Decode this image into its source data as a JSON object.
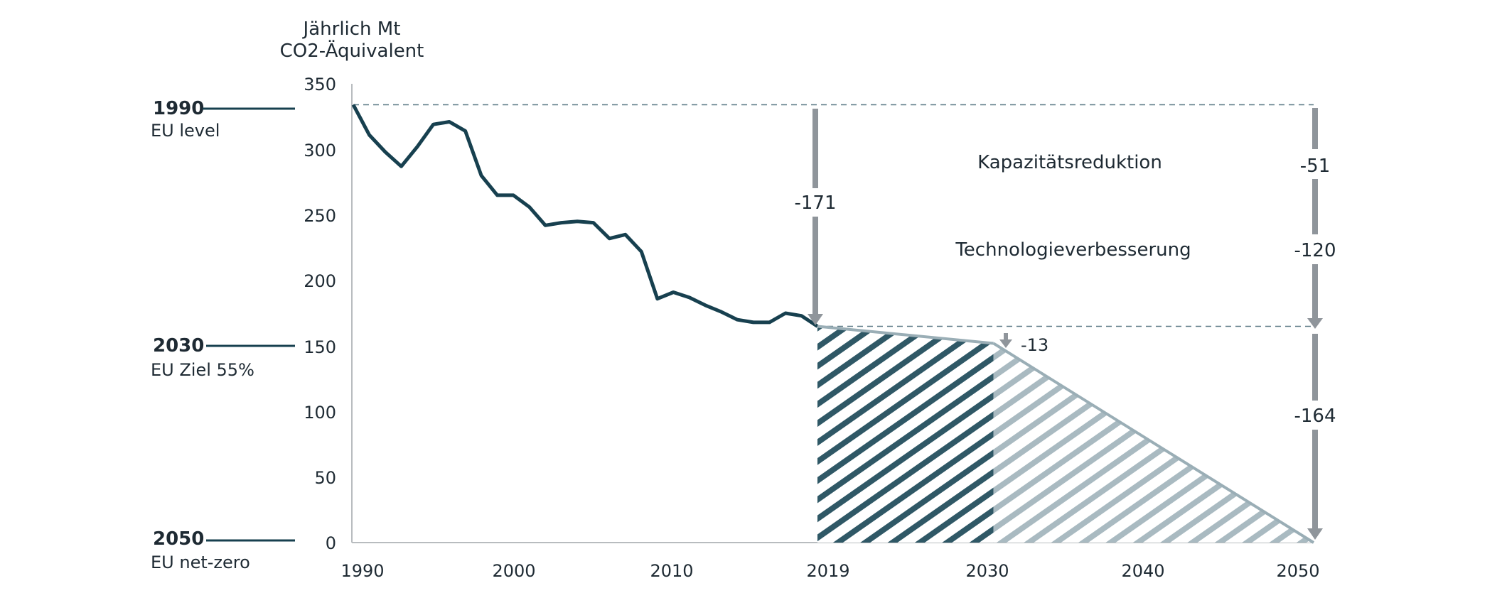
{
  "chart_data": {
    "type": "line",
    "ylabel_line1": "Jährlich Mt",
    "ylabel_line2": "CO2-Äquivalent",
    "ylim": [
      0,
      350
    ],
    "y_ticks": [
      "350",
      "300",
      "250",
      "200",
      "150",
      "100",
      "50",
      "0"
    ],
    "x_ticks": [
      "1990",
      "2000",
      "2010",
      "2019",
      "2030",
      "2040",
      "2050"
    ],
    "xlim": [
      1990,
      2050
    ],
    "series": [
      {
        "name": "",
        "x": [
          1990,
          1991,
          1992,
          1993,
          1994,
          1995,
          1996,
          1997,
          1998,
          1999,
          2000,
          2001,
          2002,
          2003,
          2004,
          2005,
          2006,
          2007,
          2008,
          2009,
          2010,
          2011,
          2012,
          2013,
          2014,
          2015,
          2016,
          2017,
          2018,
          2019
        ],
        "y": [
          334,
          311,
          298,
          287,
          302,
          319,
          321,
          314,
          280,
          265,
          265,
          256,
          242,
          244,
          245,
          244,
          232,
          235,
          222,
          186,
          191,
          187,
          181,
          176,
          170,
          168,
          168,
          175,
          173,
          165
        ]
      },
      {
        "name": "",
        "x": [
          2019,
          2030
        ],
        "y": [
          165,
          152
        ]
      },
      {
        "name": "",
        "x": [
          2030,
          2050
        ],
        "y": [
          152,
          0
        ]
      }
    ],
    "reference_lines": [
      {
        "label_year": "1990",
        "label_text": "EU level",
        "y": 334
      },
      {
        "label_year": "2030",
        "label_text": "EU Ziel 55%",
        "y": 150
      },
      {
        "label_year": "2050",
        "label_text": "EU net-zero",
        "y": 0
      }
    ],
    "dashed_lines": [
      334,
      165
    ],
    "annotations": {
      "arrow_2019": "-171",
      "arrow_2030": "-13",
      "arrow_2050_a": "-51",
      "arrow_2050_b": "-120",
      "arrow_2050_c": "-164",
      "label_capacity": "Kapazitätsreduktion",
      "label_technology": "Technologieverbesserung"
    },
    "colors": {
      "line_dark": "#17404f",
      "line_light": "#9aaeb6",
      "hatch_dark": "#2f5866",
      "hatch_light": "#a9bac1",
      "arrow": "#8f959b",
      "dashed": "#5c7a86",
      "axis": "#b8bcbf"
    }
  }
}
